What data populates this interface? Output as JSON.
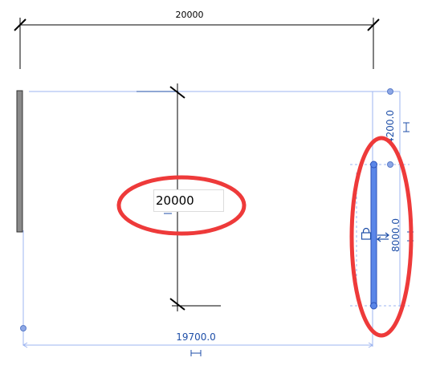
{
  "dimensions": {
    "top_overall": "20000",
    "temporary_edit_value": "20000",
    "bottom_span": "19700.0",
    "right_upper_offset": "4200.0",
    "right_wall_length": "8000.0"
  },
  "annotations": {
    "highlight_color": "#ee3a3a",
    "selection_color": "#5a86e8",
    "dimension_line_color": "#9db4f0"
  },
  "icons": {
    "lock": "lock-icon",
    "flip": "flip-arrows-icon",
    "dim_toggle": "dimension-toggle-icon"
  }
}
